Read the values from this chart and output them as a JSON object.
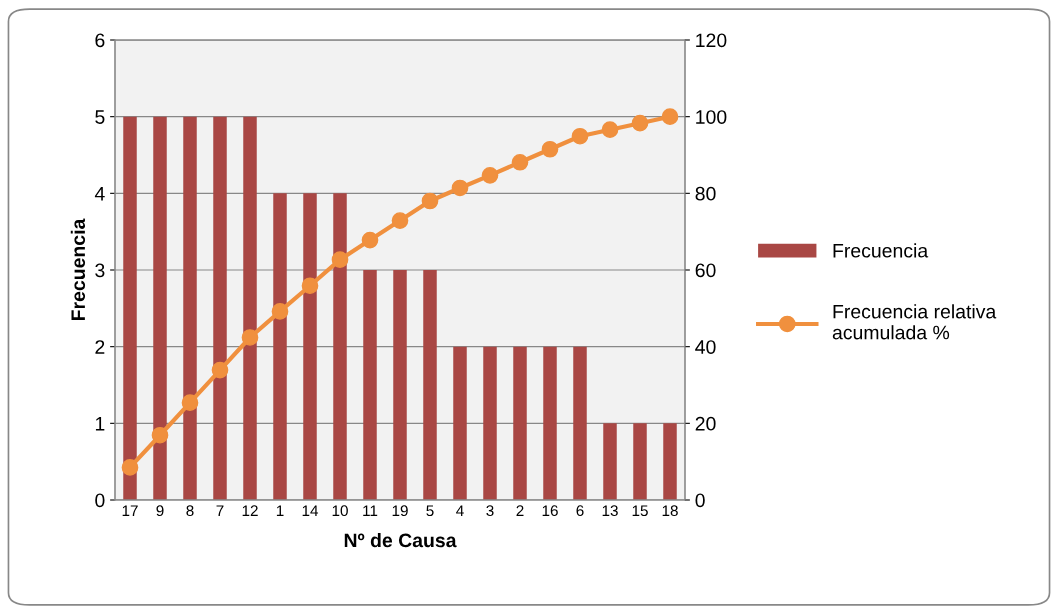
{
  "chart_data": {
    "type": "bar",
    "xlabel": "Nº de Causa",
    "ylabel": "Frecuencia",
    "categories": [
      "17",
      "9",
      "8",
      "7",
      "12",
      "1",
      "14",
      "10",
      "11",
      "19",
      "5",
      "4",
      "3",
      "2",
      "16",
      "6",
      "13",
      "15",
      "18"
    ],
    "series": [
      {
        "name": "Frecuencia",
        "color": "#a94744",
        "values": [
          5,
          5,
          5,
          5,
          5,
          4,
          4,
          4,
          3,
          3,
          3,
          2,
          2,
          2,
          2,
          2,
          1,
          1,
          1
        ]
      },
      {
        "name": "Frecuencia relativa acumulada %",
        "type": "line",
        "axis": "y2",
        "color": "#f0903e",
        "marker": "circle",
        "values": [
          8.5,
          16.9,
          25.4,
          33.9,
          42.4,
          49.2,
          55.9,
          62.7,
          67.8,
          72.9,
          78.0,
          81.4,
          84.7,
          88.1,
          91.5,
          94.9,
          96.6,
          98.3,
          100
        ]
      }
    ],
    "ylim": [
      0,
      6
    ],
    "yticks": [
      0,
      1,
      2,
      3,
      4,
      5,
      6
    ],
    "y2lim": [
      0,
      120
    ],
    "y2ticks": [
      0,
      20,
      40,
      60,
      80,
      100,
      120
    ],
    "grid": "y",
    "legend": "right"
  }
}
